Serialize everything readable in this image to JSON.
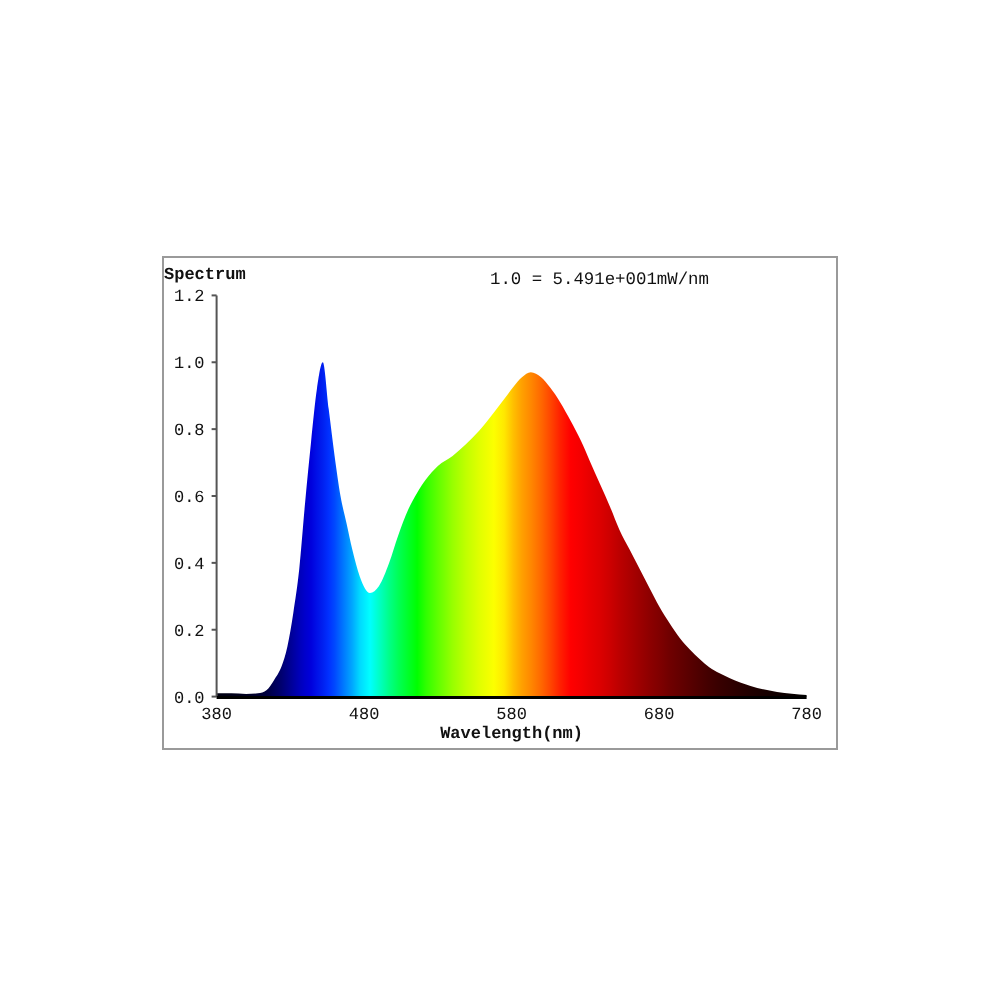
{
  "chart_data": {
    "type": "area",
    "ylabel": "Spectrum",
    "xlabel": "Wavelength(nm)",
    "annotations": [
      "1.0 = 5.491e+001mW/nm"
    ],
    "x": [
      380,
      390,
      400,
      408,
      414,
      419,
      424,
      428,
      432,
      436,
      440,
      444,
      448,
      452,
      456,
      460,
      464,
      468,
      472,
      477,
      484,
      490,
      497,
      503,
      510,
      516,
      522,
      530,
      540,
      549,
      558,
      568,
      575,
      581,
      587,
      593,
      600,
      606,
      613,
      620,
      627,
      633,
      640,
      647,
      653,
      660,
      667,
      674,
      680,
      687,
      694,
      701,
      708,
      714,
      721,
      728,
      742,
      760,
      780
    ],
    "series": [
      {
        "values": [
          0.01,
          0.01,
          0.008,
          0.01,
          0.02,
          0.05,
          0.09,
          0.15,
          0.25,
          0.38,
          0.58,
          0.76,
          0.92,
          1.0,
          0.86,
          0.72,
          0.6,
          0.52,
          0.44,
          0.36,
          0.31,
          0.33,
          0.4,
          0.48,
          0.56,
          0.61,
          0.65,
          0.69,
          0.72,
          0.755,
          0.795,
          0.85,
          0.89,
          0.925,
          0.955,
          0.97,
          0.955,
          0.925,
          0.88,
          0.825,
          0.765,
          0.705,
          0.635,
          0.565,
          0.5,
          0.44,
          0.38,
          0.32,
          0.27,
          0.22,
          0.175,
          0.14,
          0.11,
          0.088,
          0.07,
          0.055,
          0.032,
          0.014,
          0.005
        ],
        "colors": [
          "#000010",
          "#000018",
          "#000020",
          "#000030",
          "#000040",
          "#000058",
          "#000070",
          "#000088",
          "#0000a0",
          "#0000b8",
          "#0000cc",
          "#0000dc",
          "#0010e8",
          "#0020f0",
          "#0030ff",
          "#0048ff",
          "#0068ff",
          "#0088ff",
          "#00a8ff",
          "#00d8ff",
          "#00ffff",
          "#00ffc8",
          "#00ff88",
          "#00ff58",
          "#00ff28",
          "#00ff00",
          "#30ff00",
          "#60ff00",
          "#98ff00",
          "#c0ff00",
          "#e0ff00",
          "#fcff00",
          "#ffe800",
          "#ffc000",
          "#ffa000",
          "#ff8800",
          "#ff6800",
          "#ff4800",
          "#ff2000",
          "#ff0000",
          "#f40000",
          "#e80000",
          "#dc0000",
          "#cc0000",
          "#bc0000",
          "#ac0000",
          "#9c0000",
          "#8c0000",
          "#800000",
          "#700000",
          "#640000",
          "#580000",
          "#4c0000",
          "#420000",
          "#380000",
          "#300000",
          "#200000",
          "#100000",
          "#000000"
        ]
      }
    ],
    "xlim": [
      380,
      780
    ],
    "ylim": [
      0,
      1.2
    ],
    "xticks": [
      380,
      480,
      580,
      680,
      780
    ],
    "yticks": [
      {
        "value": 0,
        "label": "0.0"
      },
      0.2,
      0.4,
      0.6,
      0.8,
      {
        "value": 1,
        "label": "1.0"
      },
      1.2
    ]
  }
}
